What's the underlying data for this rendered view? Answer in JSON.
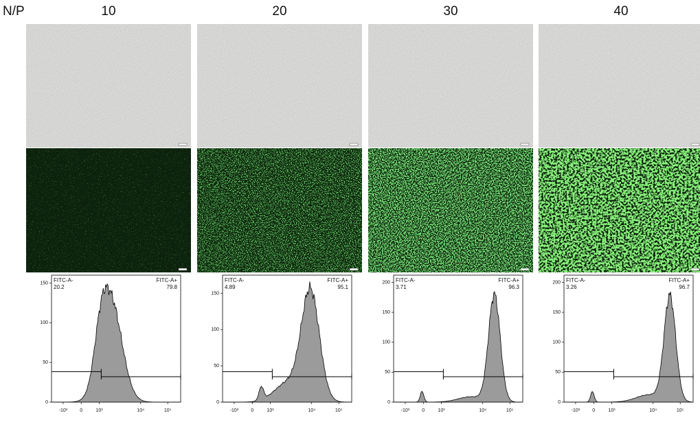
{
  "header": {
    "row_label": "N/P",
    "columns": [
      "10",
      "20",
      "30",
      "40"
    ]
  },
  "histograms": [
    {
      "ylim": [
        0,
        160
      ],
      "yticks": [
        0,
        50,
        100,
        150
      ],
      "xticks": [
        "-10³",
        "0",
        "10³",
        "10⁴",
        "10⁵"
      ],
      "gate_negative": {
        "label": "FITC-A-",
        "percent": 20.2
      },
      "gate_positive": {
        "label": "FITC-A+",
        "percent": 79.8
      }
    },
    {
      "ylim": [
        0,
        175
      ],
      "yticks": [
        0,
        50,
        100,
        150
      ],
      "xticks": [
        "-10³",
        "0",
        "10³",
        "10⁴",
        "10⁵"
      ],
      "gate_negative": {
        "label": "FITC-A-",
        "percent": 4.89
      },
      "gate_positive": {
        "label": "FITC-A+",
        "percent": 95.1
      }
    },
    {
      "ylim": [
        0,
        212
      ],
      "yticks": [
        0,
        50,
        100,
        150,
        200
      ],
      "xticks": [
        "-10³",
        "0",
        "10³",
        "10⁴",
        "10⁵"
      ],
      "gate_negative": {
        "label": "FITC-A-",
        "percent": 3.71
      },
      "gate_positive": {
        "label": "FITC-A+",
        "percent": 96.3
      }
    },
    {
      "ylim": [
        0,
        212
      ],
      "yticks": [
        0,
        50,
        100,
        150,
        200
      ],
      "xticks": [
        "-10³",
        "0",
        "10³",
        "10⁴",
        "10⁵"
      ],
      "gate_negative": {
        "label": "FITC-A-",
        "percent": 3.26
      },
      "gate_positive": {
        "label": "FITC-A+",
        "percent": 96.7
      }
    }
  ]
}
